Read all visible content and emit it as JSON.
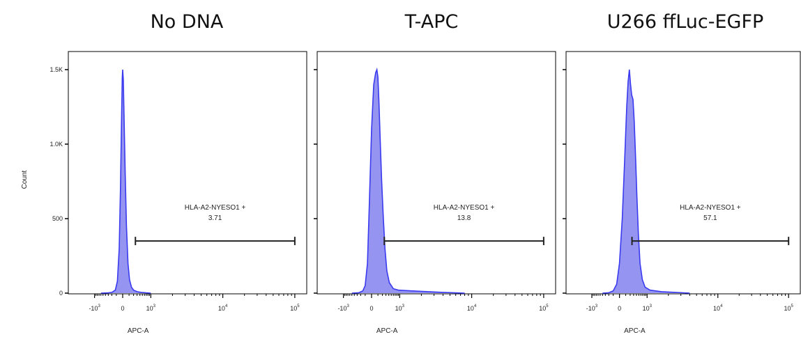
{
  "chart_data": [
    {
      "type": "histogram",
      "title": "No DNA",
      "xlabel": "APC-A",
      "ylabel": "Count",
      "x_scale": "biexponential",
      "x_ticks": [
        {
          "base": "-10",
          "exp": "3",
          "value": -1000
        },
        {
          "base": "0",
          "exp": "",
          "value": 0
        },
        {
          "base": "10",
          "exp": "3",
          "value": 1000
        },
        {
          "base": "10",
          "exp": "4",
          "value": 10000
        },
        {
          "base": "10",
          "exp": "5",
          "value": 100000
        }
      ],
      "y_ticks": [
        "0",
        "500",
        "1.0K",
        "1.5K"
      ],
      "ylim": [
        0,
        1500
      ],
      "show_y_tick_labels": true,
      "gate": {
        "name": "HLA-A2-NYESO1 +",
        "percent": "3.71",
        "x_range": [
          250,
          100000
        ],
        "y_level": 350
      },
      "color": "#3a3af0",
      "fill": "#8f8ff0",
      "peak_x": 0,
      "peak_count": 1500,
      "histogram": [
        [
          -600,
          0
        ],
        [
          -300,
          2
        ],
        [
          -200,
          5
        ],
        [
          -120,
          20
        ],
        [
          -80,
          80
        ],
        [
          -50,
          300
        ],
        [
          -30,
          700
        ],
        [
          -15,
          1150
        ],
        [
          -5,
          1450
        ],
        [
          0,
          1500
        ],
        [
          8,
          1430
        ],
        [
          20,
          1150
        ],
        [
          35,
          800
        ],
        [
          55,
          450
        ],
        [
          80,
          200
        ],
        [
          110,
          90
        ],
        [
          150,
          40
        ],
        [
          200,
          20
        ],
        [
          300,
          10
        ],
        [
          450,
          5
        ],
        [
          700,
          2
        ],
        [
          1000,
          0
        ]
      ]
    },
    {
      "type": "histogram",
      "title": "T-APC",
      "xlabel": "APC-A",
      "ylabel": "",
      "x_scale": "biexponential",
      "x_ticks": [
        {
          "base": "-10",
          "exp": "3",
          "value": -1000
        },
        {
          "base": "0",
          "exp": "",
          "value": 0
        },
        {
          "base": "10",
          "exp": "3",
          "value": 1000
        },
        {
          "base": "10",
          "exp": "4",
          "value": 10000
        },
        {
          "base": "10",
          "exp": "5",
          "value": 100000
        }
      ],
      "y_ticks": [
        "0",
        "500",
        "1.0K",
        "1.5K"
      ],
      "ylim": [
        0,
        1500
      ],
      "show_y_tick_labels": false,
      "gate": {
        "name": "HLA-A2-NYESO1 +",
        "percent": "13.8",
        "x_range": [
          250,
          100000
        ],
        "y_level": 350
      },
      "color": "#3a3af0",
      "fill": "#8f8ff0",
      "peak_x": 80,
      "peak_count": 1500,
      "histogram": [
        [
          -500,
          0
        ],
        [
          -250,
          3
        ],
        [
          -150,
          15
        ],
        [
          -100,
          50
        ],
        [
          -60,
          200
        ],
        [
          -30,
          600
        ],
        [
          0,
          1100
        ],
        [
          30,
          1400
        ],
        [
          60,
          1480
        ],
        [
          80,
          1500
        ],
        [
          100,
          1450
        ],
        [
          120,
          1280
        ],
        [
          150,
          1000
        ],
        [
          180,
          760
        ],
        [
          220,
          520
        ],
        [
          270,
          300
        ],
        [
          330,
          150
        ],
        [
          420,
          70
        ],
        [
          600,
          30
        ],
        [
          900,
          20
        ],
        [
          1500,
          15
        ],
        [
          2500,
          10
        ],
        [
          4000,
          5
        ],
        [
          6000,
          2
        ],
        [
          8000,
          0
        ]
      ]
    },
    {
      "type": "histogram",
      "title": "U266 ffLuc-EGFP",
      "xlabel": "APC-A",
      "ylabel": "",
      "x_scale": "biexponential",
      "x_ticks": [
        {
          "base": "-10",
          "exp": "3",
          "value": -1000
        },
        {
          "base": "0",
          "exp": "",
          "value": 0
        },
        {
          "base": "10",
          "exp": "3",
          "value": 1000
        },
        {
          "base": "10",
          "exp": "4",
          "value": 10000
        },
        {
          "base": "10",
          "exp": "5",
          "value": 100000
        }
      ],
      "y_ticks": [
        "0",
        "500",
        "1.0K",
        "1.5K"
      ],
      "ylim": [
        0,
        1500
      ],
      "show_y_tick_labels": false,
      "gate": {
        "name": "HLA-A2-NYESO1 +",
        "percent": "57.1",
        "x_range": [
          250,
          100000
        ],
        "y_level": 350
      },
      "color": "#3a3af0",
      "fill": "#8f8ff0",
      "peak_x": 180,
      "peak_count": 1500,
      "histogram": [
        [
          -400,
          0
        ],
        [
          -200,
          3
        ],
        [
          -100,
          15
        ],
        [
          -40,
          60
        ],
        [
          0,
          200
        ],
        [
          40,
          500
        ],
        [
          80,
          900
        ],
        [
          120,
          1250
        ],
        [
          150,
          1420
        ],
        [
          180,
          1500
        ],
        [
          210,
          1400
        ],
        [
          240,
          1330
        ],
        [
          280,
          1300
        ],
        [
          320,
          1150
        ],
        [
          370,
          900
        ],
        [
          420,
          650
        ],
        [
          480,
          400
        ],
        [
          560,
          200
        ],
        [
          680,
          90
        ],
        [
          850,
          40
        ],
        [
          1100,
          20
        ],
        [
          1600,
          10
        ],
        [
          2500,
          5
        ],
        [
          4000,
          0
        ]
      ]
    }
  ]
}
